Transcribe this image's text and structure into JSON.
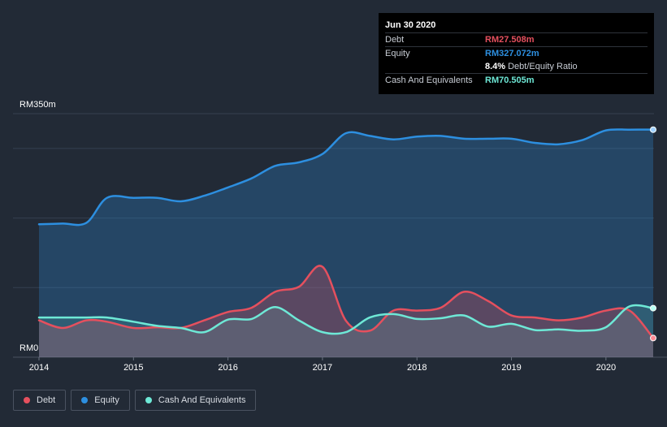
{
  "tooltip": {
    "date": "Jun 30 2020",
    "debt_label": "Debt",
    "debt_value": "RM27.508m",
    "equity_label": "Equity",
    "equity_value": "RM327.072m",
    "ratio_value": "8.4%",
    "ratio_label": "Debt/Equity Ratio",
    "cash_label": "Cash And Equivalents",
    "cash_value": "RM70.505m"
  },
  "legend": {
    "debt": "Debt",
    "equity": "Equity",
    "cash": "Cash And Equivalents"
  },
  "colors": {
    "debt": "#e5505e",
    "equity": "#2d8fe0",
    "cash": "#6ee8d6",
    "background": "#222a36"
  },
  "chart_data": {
    "type": "area",
    "title": "",
    "xlabel": "",
    "ylabel": "",
    "y_top_label": "RM350m",
    "y_bottom_label": "RM0",
    "ylim": [
      0,
      350
    ],
    "xlim": [
      2014,
      2020.5
    ],
    "xticks": [
      "2014",
      "2015",
      "2016",
      "2017",
      "2018",
      "2019",
      "2020"
    ],
    "series": [
      {
        "name": "Equity",
        "x": [
          2014.0,
          2014.25,
          2014.5,
          2014.72,
          2015.0,
          2015.25,
          2015.5,
          2015.75,
          2016.0,
          2016.25,
          2016.5,
          2016.75,
          2017.0,
          2017.25,
          2017.5,
          2017.75,
          2018.0,
          2018.25,
          2018.5,
          2018.75,
          2019.0,
          2019.25,
          2019.5,
          2019.75,
          2020.0,
          2020.25,
          2020.5
        ],
        "values": [
          191,
          192,
          193,
          229,
          229,
          229,
          224,
          232,
          244,
          257,
          275,
          280,
          292,
          322,
          318,
          313,
          317,
          318,
          314,
          314,
          314,
          308,
          306,
          312,
          326,
          327,
          327
        ]
      },
      {
        "name": "Debt",
        "x": [
          2014.0,
          2014.25,
          2014.5,
          2014.72,
          2015.0,
          2015.25,
          2015.5,
          2015.75,
          2016.0,
          2016.25,
          2016.5,
          2016.75,
          2017.0,
          2017.25,
          2017.5,
          2017.75,
          2018.0,
          2018.25,
          2018.5,
          2018.75,
          2019.0,
          2019.25,
          2019.5,
          2019.75,
          2020.0,
          2020.25,
          2020.5
        ],
        "values": [
          53,
          42,
          53,
          51,
          42,
          43,
          42,
          53,
          65,
          71,
          94,
          101,
          130,
          52,
          38,
          67,
          67,
          71,
          94,
          81,
          60,
          57,
          53,
          57,
          67,
          67,
          27.5
        ]
      },
      {
        "name": "Cash And Equivalents",
        "x": [
          2014.0,
          2014.25,
          2014.5,
          2014.72,
          2015.0,
          2015.25,
          2015.5,
          2015.75,
          2016.0,
          2016.25,
          2016.5,
          2016.75,
          2017.0,
          2017.25,
          2017.5,
          2017.75,
          2018.0,
          2018.25,
          2018.5,
          2018.75,
          2019.0,
          2019.25,
          2019.5,
          2019.75,
          2020.0,
          2020.25,
          2020.5
        ],
        "values": [
          57,
          57,
          57,
          57,
          51,
          45,
          42,
          36,
          54,
          55,
          72,
          53,
          36,
          36,
          57,
          62,
          55,
          56,
          60,
          44,
          48,
          39,
          40,
          38,
          43,
          73,
          70.5
        ]
      }
    ]
  }
}
